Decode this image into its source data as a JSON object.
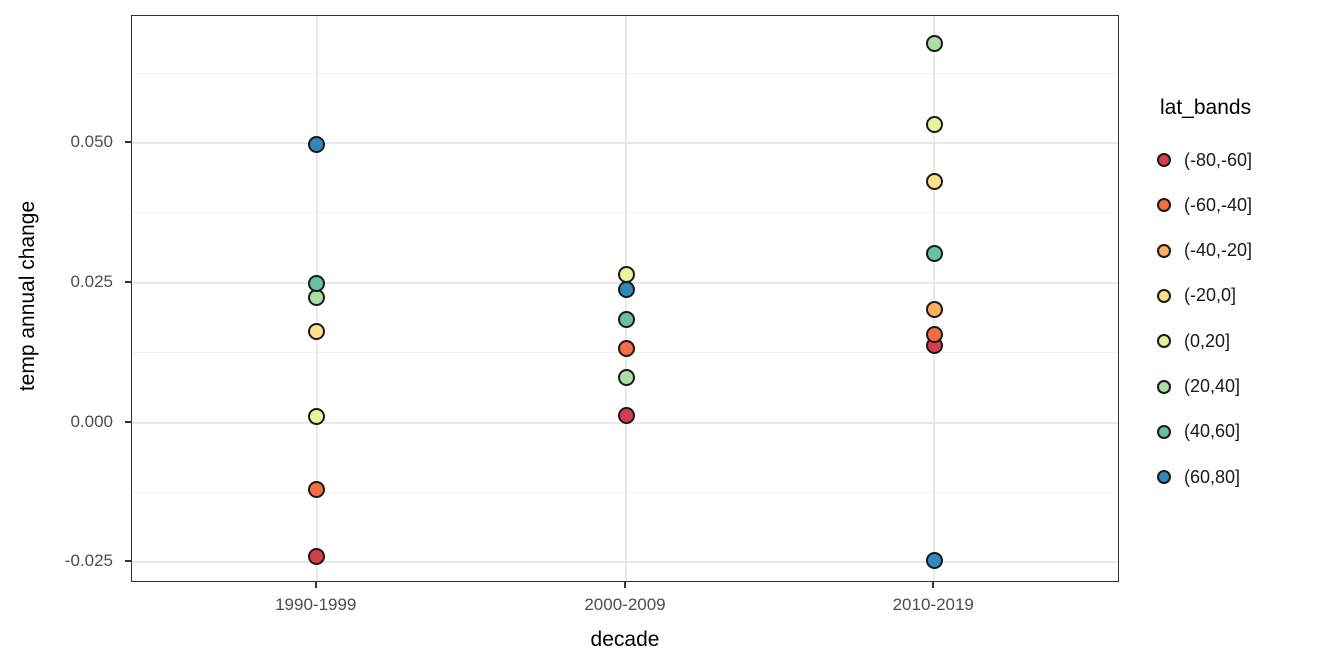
{
  "chart_data": {
    "type": "scatter",
    "title": "",
    "xlabel": "decade",
    "ylabel": "temp annual change",
    "legend_title": "lat_bands",
    "legend_position": "right",
    "categories": [
      "1990-1999",
      "2000-2009",
      "2010-2019"
    ],
    "series": [
      {
        "name": "(-80,-60]",
        "color": "#d53e4f",
        "values": [
          -0.024,
          0.0013,
          0.0138
        ]
      },
      {
        "name": "(-60,-40]",
        "color": "#f46d43",
        "values": [
          -0.012,
          0.0133,
          0.0158
        ]
      },
      {
        "name": "(-40,-20]",
        "color": "#fdae61",
        "values": [
          null,
          null,
          0.0203
        ]
      },
      {
        "name": "(-20,0]",
        "color": "#fee08b",
        "values": [
          0.0162,
          null,
          0.0431
        ]
      },
      {
        "name": "(0,20]",
        "color": "#e6f598",
        "values": [
          0.0011,
          0.0265,
          0.0533
        ]
      },
      {
        "name": "(20,40]",
        "color": "#abdda4",
        "values": [
          0.0223,
          0.0081,
          0.0678
        ]
      },
      {
        "name": "(40,60]",
        "color": "#66c2a5",
        "values": [
          0.0249,
          0.0185,
          0.0303
        ]
      },
      {
        "name": "(60,80]",
        "color": "#3288bd",
        "values": [
          0.0497,
          0.0238,
          -0.0246
        ]
      }
    ],
    "ylim": [
      -0.0287,
      0.0727
    ],
    "yticks": [
      -0.025,
      0.0,
      0.025,
      0.05
    ],
    "ytick_labels": [
      "-0.025",
      "0.000",
      "0.025",
      "0.050"
    ],
    "yminor": [
      -0.0125,
      0.0125,
      0.0375,
      0.0625
    ],
    "grid": true
  },
  "style": {
    "grid_major_color": "#e8e8e8",
    "grid_minor_color": "#f1f1f1",
    "panel_border_color": "#333333",
    "point_stroke_color": "#1a1a1a",
    "tick_color": "#333333",
    "tick_label_color": "#4d4d4d",
    "title_color": "#000000",
    "background_color": "#ffffff"
  }
}
